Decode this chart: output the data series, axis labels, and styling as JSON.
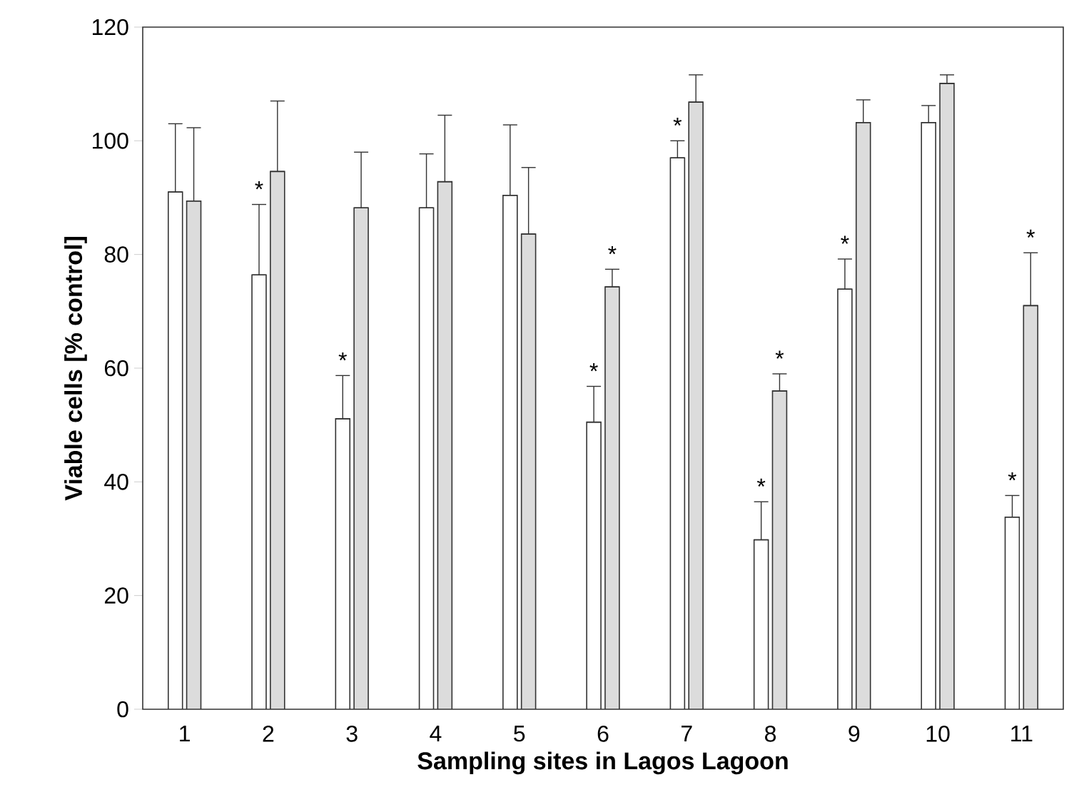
{
  "chart_data": {
    "type": "bar",
    "xlabel": "Sampling sites in Lagos Lagoon",
    "ylabel": "Viable cells [% control]",
    "categories": [
      "1",
      "2",
      "3",
      "4",
      "5",
      "6",
      "7",
      "8",
      "9",
      "10",
      "11"
    ],
    "series": [
      {
        "color": "#ffffff",
        "values": [
          91.0,
          76.4,
          51.1,
          88.2,
          90.4,
          50.5,
          97.0,
          29.8,
          73.9,
          103.2,
          33.8
        ],
        "errors": [
          [
            91.0,
            103.0
          ],
          [
            76.4,
            88.8
          ],
          [
            51.1,
            58.7
          ],
          [
            88.2,
            97.7
          ],
          [
            90.4,
            102.8
          ],
          [
            50.5,
            56.8
          ],
          [
            97.0,
            100.0
          ],
          [
            29.8,
            36.5
          ],
          [
            73.9,
            79.2
          ],
          [
            103.2,
            106.2
          ],
          [
            33.8,
            37.6
          ]
        ]
      },
      {
        "color": "#dcdcdc",
        "values": [
          89.4,
          94.6,
          88.2,
          92.8,
          83.6,
          74.3,
          106.8,
          56.0,
          103.2,
          110.1,
          71.0
        ],
        "errors": [
          [
            89.4,
            102.3
          ],
          [
            94.6,
            107.0
          ],
          [
            88.2,
            98.0
          ],
          [
            92.8,
            104.5
          ],
          [
            83.6,
            95.3
          ],
          [
            74.3,
            77.4
          ],
          [
            106.8,
            111.6
          ],
          [
            56.0,
            59.0
          ],
          [
            103.2,
            107.2
          ],
          [
            110.1,
            111.6
          ],
          [
            71.0,
            80.3
          ]
        ]
      }
    ],
    "ylim": [
      0,
      120
    ],
    "yticks": [
      0,
      20,
      40,
      60,
      80,
      100,
      120
    ],
    "grid": false,
    "annotations": [
      {
        "text": "*",
        "x": "2",
        "y": 88.8
      },
      {
        "text": "*",
        "x": "3",
        "y": 58.7
      },
      {
        "text": "*",
        "x": "6",
        "y": 56.8
      },
      {
        "text": "*",
        "x": "6",
        "y": 77.4
      },
      {
        "text": "*",
        "x": "7",
        "y": 100.0
      },
      {
        "text": "*",
        "x": "8",
        "y": 36.5
      },
      {
        "text": "*",
        "x": "8",
        "y": 59.0
      },
      {
        "text": "*",
        "x": "9",
        "y": 79.2
      },
      {
        "text": "*",
        "x": "11",
        "y": 37.6
      },
      {
        "text": "*",
        "x": "11",
        "y": 80.3
      }
    ]
  }
}
